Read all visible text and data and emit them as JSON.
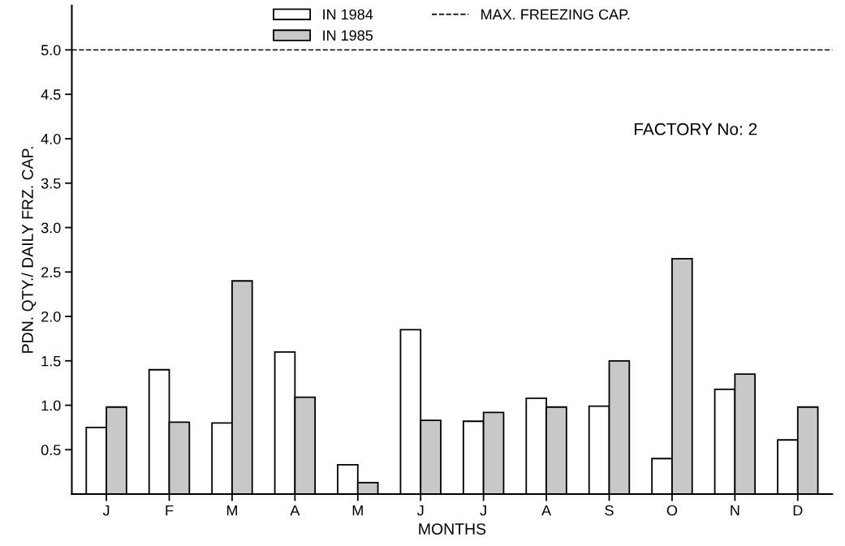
{
  "chart_data": {
    "type": "bar",
    "xlabel": "MONTHS",
    "ylabel": "PDN. QTY./ DAILY FRZ. CAP.",
    "categories": [
      "J",
      "F",
      "M",
      "A",
      "M",
      "J",
      "J",
      "A",
      "S",
      "O",
      "N",
      "D"
    ],
    "series": [
      {
        "name": "IN 1984",
        "color": "#ffffff",
        "values": [
          0.75,
          1.4,
          0.8,
          1.6,
          0.33,
          1.85,
          0.82,
          1.08,
          0.99,
          0.4,
          1.18,
          0.61
        ]
      },
      {
        "name": "IN 1985",
        "color": "#c8c8c8",
        "values": [
          0.98,
          0.81,
          2.4,
          1.09,
          0.13,
          0.83,
          0.92,
          0.98,
          1.5,
          2.65,
          1.35,
          0.98
        ]
      }
    ],
    "ylim": [
      0,
      5.5
    ],
    "yticks": [
      0.5,
      {
        "value": 1,
        "label": "1.0"
      },
      1.5,
      {
        "value": 2,
        "label": "2.0"
      },
      2.5,
      {
        "value": 3,
        "label": "3.0"
      },
      3.5,
      {
        "value": 4,
        "label": "4.0"
      },
      4.5,
      {
        "value": 5,
        "label": "5.0"
      }
    ],
    "ref_lines": [
      {
        "axis": "y",
        "value": 5.0,
        "label": "MAX. FREEZING CAP.",
        "line_style": "dashed",
        "color": "#000000"
      }
    ],
    "annotations": [
      "FACTORY No: 2"
    ],
    "legend": "top",
    "grid": false
  }
}
